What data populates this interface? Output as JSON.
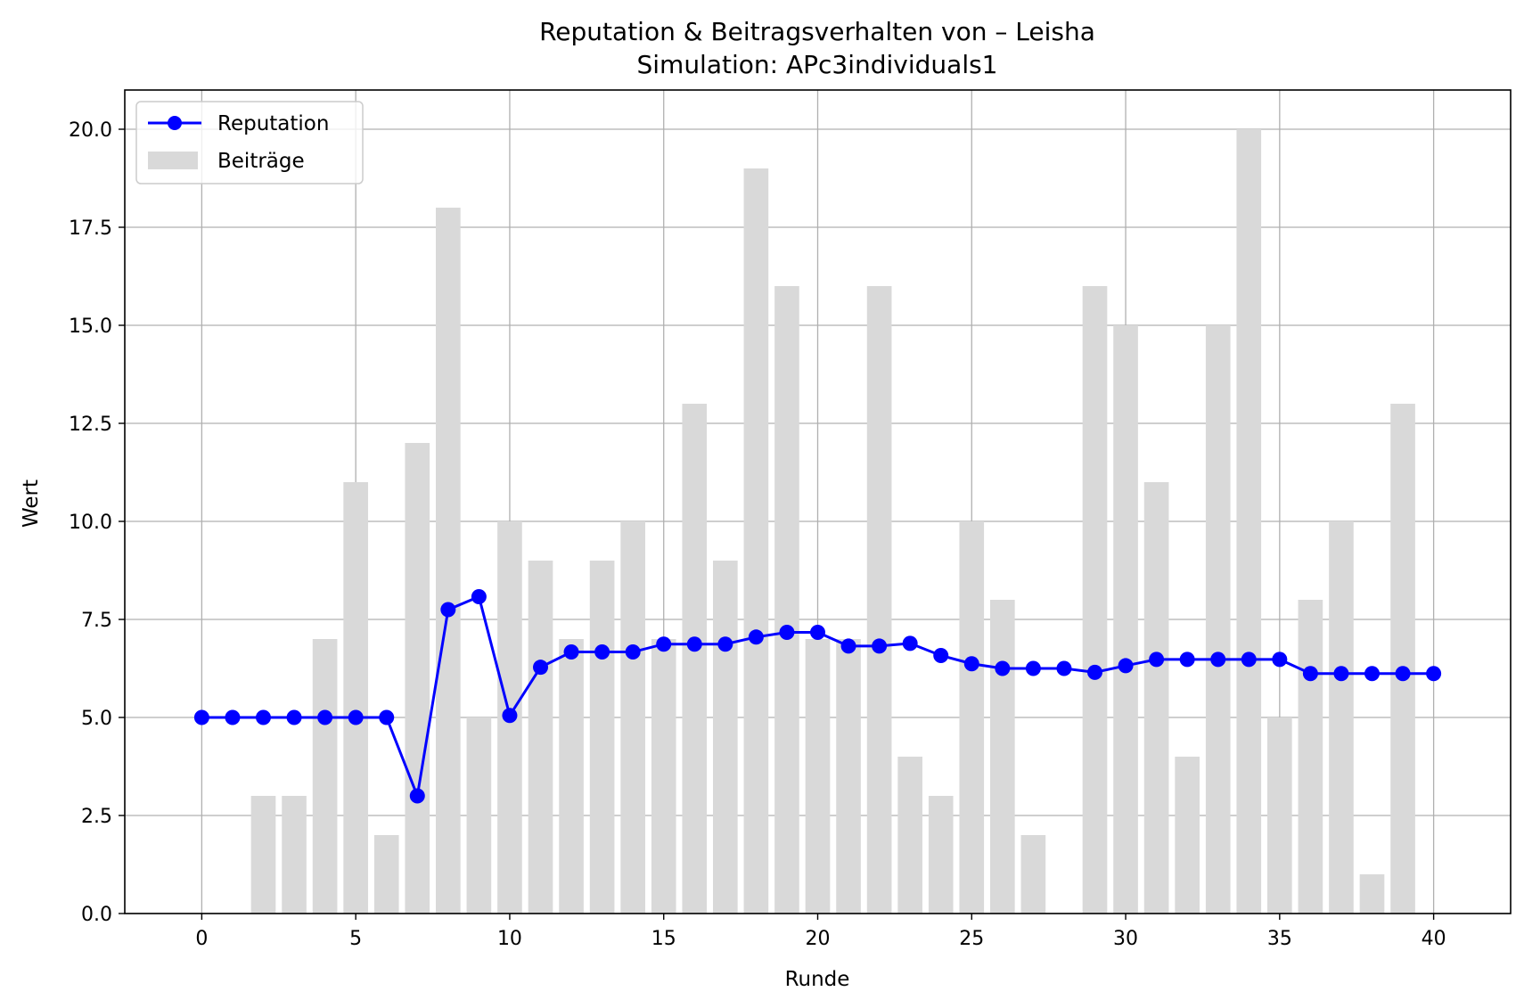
{
  "chart_data": {
    "type": "bar+line",
    "title": "Reputation & Beitragsverhalten von – Leisha",
    "subtitle": "Simulation: APc3individuals1",
    "xlabel": "Runde",
    "ylabel": "Wert",
    "xlim": [
      -2.5,
      42.5
    ],
    "ylim": [
      0,
      21
    ],
    "xticks": [
      0,
      5,
      10,
      15,
      20,
      25,
      30,
      35,
      40
    ],
    "yticks": [
      0.0,
      2.5,
      5.0,
      7.5,
      10.0,
      12.5,
      15.0,
      17.5,
      20.0
    ],
    "ytick_labels": [
      "0.0",
      "2.5",
      "5.0",
      "7.5",
      "10.0",
      "12.5",
      "15.0",
      "17.5",
      "20.0"
    ],
    "grid": true,
    "legend_position": "top-left",
    "series": [
      {
        "name": "Reputation",
        "type": "line",
        "color": "#0000ff",
        "x": [
          0,
          1,
          2,
          3,
          4,
          5,
          6,
          7,
          8,
          9,
          10,
          11,
          12,
          13,
          14,
          15,
          16,
          17,
          18,
          19,
          20,
          21,
          22,
          23,
          24,
          25,
          26,
          27,
          28,
          29,
          30,
          31,
          32,
          33,
          34,
          35,
          36,
          37,
          38,
          39,
          40
        ],
        "values": [
          5.0,
          5.0,
          5.0,
          5.0,
          5.0,
          5.0,
          5.0,
          3.0,
          7.75,
          8.08,
          5.05,
          6.28,
          6.67,
          6.67,
          6.67,
          6.87,
          6.87,
          6.87,
          7.05,
          7.17,
          7.17,
          6.82,
          6.82,
          6.89,
          6.58,
          6.37,
          6.25,
          6.25,
          6.25,
          6.15,
          6.32,
          6.48,
          6.48,
          6.48,
          6.48,
          6.48,
          6.12,
          6.12,
          6.12,
          6.12,
          6.12
        ]
      },
      {
        "name": "Beiträge",
        "type": "bar",
        "color": "#d9d9d9",
        "x": [
          0,
          1,
          2,
          3,
          4,
          5,
          6,
          7,
          8,
          9,
          10,
          11,
          12,
          13,
          14,
          15,
          16,
          17,
          18,
          19,
          20,
          21,
          22,
          23,
          24,
          25,
          26,
          27,
          28,
          29,
          30,
          31,
          32,
          33,
          34,
          35,
          36,
          37,
          38,
          39
        ],
        "values": [
          0,
          0,
          3,
          3,
          7,
          11,
          2,
          12,
          18,
          5,
          10,
          9,
          7,
          9,
          10,
          7,
          13,
          9,
          19,
          16,
          7,
          7,
          16,
          4,
          3,
          10,
          8,
          2,
          0,
          16,
          15,
          11,
          4,
          15,
          20,
          5,
          8,
          10,
          1,
          13
        ]
      }
    ]
  }
}
